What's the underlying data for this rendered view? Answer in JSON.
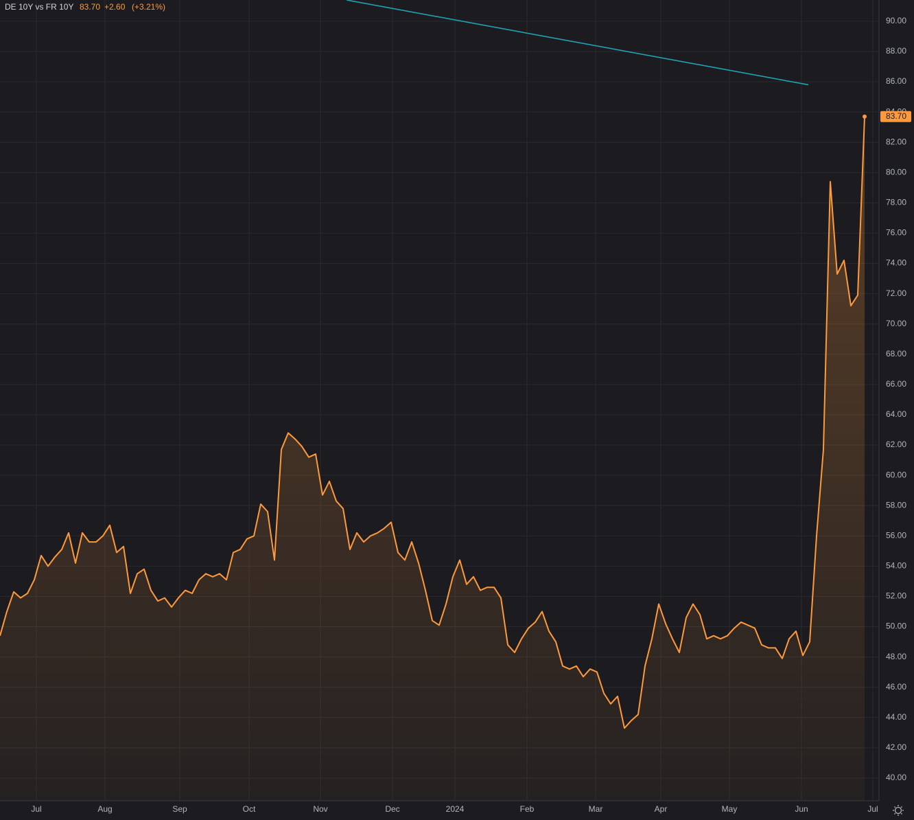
{
  "chart_data": {
    "type": "area",
    "title": "DE 10Y vs FR 10Y",
    "legend_values": [
      "83.70",
      "+2.60",
      "(+3.21%)"
    ],
    "color": "#ff9a3c",
    "grid": true,
    "xlim": [
      0,
      128
    ],
    "ylim": [
      38.5,
      91.4
    ],
    "xticks": [
      {
        "value": 5.3,
        "label": "Jul"
      },
      {
        "value": 15.3,
        "label": "Aug"
      },
      {
        "value": 26.2,
        "label": "Sep"
      },
      {
        "value": 36.3,
        "label": "Oct"
      },
      {
        "value": 46.7,
        "label": "Nov"
      },
      {
        "value": 57.2,
        "label": "Dec"
      },
      {
        "value": 66.3,
        "label": "2024"
      },
      {
        "value": 76.8,
        "label": "Feb"
      },
      {
        "value": 86.8,
        "label": "Mar"
      },
      {
        "value": 96.3,
        "label": "Apr"
      },
      {
        "value": 106.3,
        "label": "May"
      },
      {
        "value": 116.8,
        "label": "Jun"
      },
      {
        "value": 127.2,
        "label": "Jul"
      }
    ],
    "yticks": [
      {
        "value": 40,
        "label": "40.00"
      },
      {
        "value": 42,
        "label": "42.00"
      },
      {
        "value": 44,
        "label": "44.00"
      },
      {
        "value": 46,
        "label": "46.00"
      },
      {
        "value": 48,
        "label": "48.00"
      },
      {
        "value": 50,
        "label": "50.00"
      },
      {
        "value": 52,
        "label": "52.00"
      },
      {
        "value": 54,
        "label": "54.00"
      },
      {
        "value": 56,
        "label": "56.00"
      },
      {
        "value": 58,
        "label": "58.00"
      },
      {
        "value": 60,
        "label": "60.00"
      },
      {
        "value": 62,
        "label": "62.00"
      },
      {
        "value": 64,
        "label": "64.00"
      },
      {
        "value": 66,
        "label": "66.00"
      },
      {
        "value": 68,
        "label": "68.00"
      },
      {
        "value": 70,
        "label": "70.00"
      },
      {
        "value": 72,
        "label": "72.00"
      },
      {
        "value": 74,
        "label": "74.00"
      },
      {
        "value": 76,
        "label": "76.00"
      },
      {
        "value": 78,
        "label": "78.00"
      },
      {
        "value": 80,
        "label": "80.00"
      },
      {
        "value": 82,
        "label": "82.00"
      },
      {
        "value": 84,
        "label": "84.00"
      },
      {
        "value": 86,
        "label": "86.00"
      },
      {
        "value": 88,
        "label": "88.00"
      },
      {
        "value": 90,
        "label": "90.00"
      }
    ],
    "series": [
      {
        "name": "DE 10Y vs FR 10Y",
        "color": "#ff9a3c",
        "values": [
          49.4,
          51.0,
          52.3,
          51.9,
          52.2,
          53.1,
          54.7,
          54.0,
          54.6,
          55.1,
          56.2,
          54.2,
          56.2,
          55.6,
          55.6,
          56.0,
          56.7,
          54.9,
          55.3,
          52.2,
          53.5,
          53.8,
          52.4,
          51.7,
          51.9,
          51.3,
          51.9,
          52.4,
          52.2,
          53.1,
          53.5,
          53.3,
          53.5,
          53.1,
          54.9,
          55.1,
          55.8,
          56.0,
          58.1,
          57.6,
          54.4,
          61.7,
          62.8,
          62.4,
          61.9,
          61.2,
          61.4,
          58.7,
          59.6,
          58.3,
          57.8,
          55.1,
          56.2,
          55.6,
          56.0,
          56.2,
          56.5,
          56.9,
          54.9,
          54.4,
          55.6,
          54.2,
          52.4,
          50.4,
          50.1,
          51.5,
          53.3,
          54.4,
          52.8,
          53.3,
          52.4,
          52.6,
          52.6,
          51.9,
          48.8,
          48.3,
          49.2,
          49.9,
          50.3,
          51.0,
          49.7,
          49.0,
          47.4,
          47.2,
          47.4,
          46.7,
          47.2,
          47.0,
          45.6,
          44.9,
          45.4,
          43.3,
          43.8,
          44.2,
          47.4,
          49.2,
          51.5,
          50.2,
          49.2,
          48.3,
          50.6,
          51.5,
          50.8,
          49.2,
          49.4,
          49.2,
          49.4,
          49.9,
          50.3,
          50.1,
          49.9,
          48.8,
          48.6,
          48.6,
          47.9,
          49.2,
          49.7,
          48.1,
          49.0,
          56.0,
          61.7,
          79.4,
          73.3,
          74.2,
          71.2,
          71.9,
          83.7
        ]
      }
    ],
    "trendline": {
      "color": "#1fa3b3",
      "x": [
        50.5,
        117.8
      ],
      "values": [
        91.4,
        85.8
      ]
    }
  }
}
